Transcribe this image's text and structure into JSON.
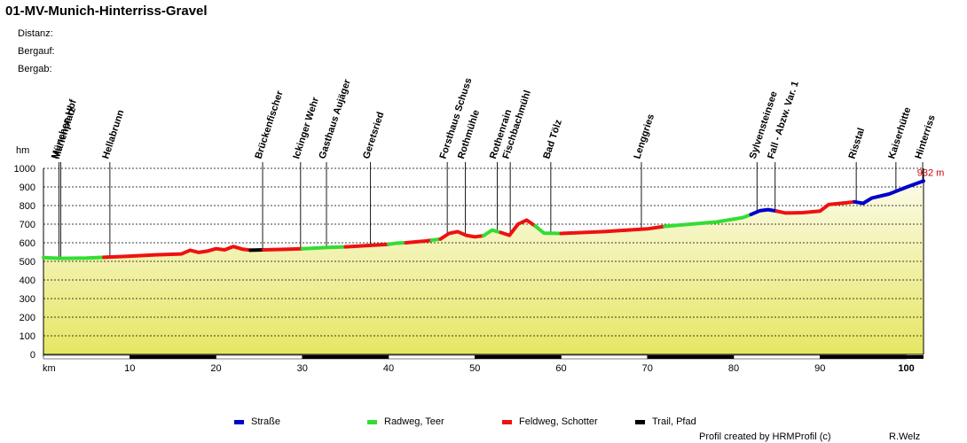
{
  "title": "01-MV-Munich-Hinterriss-Gravel",
  "stats": {
    "distance_label": "Distanz:",
    "ascent_label": "Bergauf:",
    "descent_label": "Bergab:"
  },
  "credit_left": "Profil created by HRMProfil (c)",
  "credit_right": "R.Welz",
  "colors": {
    "strasse": "#0000cc",
    "radweg": "#33dd33",
    "feldweg": "#ee1111",
    "trail": "#000000",
    "end_label": "#cc0000"
  },
  "chart_data": {
    "type": "area",
    "title": "01-MV-Munich-Hinterriss-Gravel",
    "xlabel": "km",
    "ylabel": "hm",
    "xlim": [
      0,
      102
    ],
    "ylim": [
      0,
      1000
    ],
    "xticks": [
      10,
      20,
      30,
      40,
      50,
      60,
      70,
      80,
      90,
      100
    ],
    "yticks": [
      0,
      100,
      200,
      300,
      400,
      500,
      600,
      700,
      800,
      900,
      1000
    ],
    "grid": true,
    "end_label": "932 m",
    "legend": [
      {
        "name": "Straße",
        "key": "strasse"
      },
      {
        "name": "Radweg, Teer",
        "key": "radweg"
      },
      {
        "name": "Feldweg, Schotter",
        "key": "feldweg"
      },
      {
        "name": "Trail, Pfad",
        "key": "trail"
      }
    ],
    "waypoints": [
      {
        "km": 1.8,
        "name": "München Hbf"
      },
      {
        "km": 2.0,
        "name": "Marienplatz"
      },
      {
        "km": 7.7,
        "name": "Hellabrunn"
      },
      {
        "km": 25.4,
        "name": "Brückenfischer"
      },
      {
        "km": 29.8,
        "name": "Ickinger Wehr"
      },
      {
        "km": 32.8,
        "name": "Gasthaus Aujäger"
      },
      {
        "km": 37.9,
        "name": "Geretsried"
      },
      {
        "km": 46.8,
        "name": "Forsthaus Schuss"
      },
      {
        "km": 48.9,
        "name": "Rothmühle"
      },
      {
        "km": 52.6,
        "name": "Rothenrain"
      },
      {
        "km": 54.1,
        "name": "Fischbachmühl"
      },
      {
        "km": 58.8,
        "name": "Bad Tölz"
      },
      {
        "km": 69.3,
        "name": "Lenggries"
      },
      {
        "km": 82.7,
        "name": "Sylvensteinsee"
      },
      {
        "km": 84.8,
        "name": "Fall - Abzw. Var. 1"
      },
      {
        "km": 94.2,
        "name": "Risstal"
      },
      {
        "km": 98.8,
        "name": "Kaiserhütte"
      },
      {
        "km": 101.9,
        "name": "Hinterriss"
      }
    ],
    "segments": [
      {
        "type": "radweg",
        "points": [
          [
            0,
            520
          ],
          [
            2,
            516
          ],
          [
            5,
            518
          ],
          [
            7,
            522
          ]
        ]
      },
      {
        "type": "feldweg",
        "points": [
          [
            7,
            522
          ],
          [
            10,
            528
          ],
          [
            13,
            535
          ],
          [
            16,
            540
          ],
          [
            17,
            560
          ],
          [
            18,
            548
          ],
          [
            19,
            555
          ],
          [
            20,
            568
          ],
          [
            21,
            562
          ],
          [
            22,
            580
          ],
          [
            23,
            566
          ],
          [
            24,
            560
          ]
        ]
      },
      {
        "type": "trail",
        "points": [
          [
            24,
            560
          ],
          [
            25.5,
            562
          ]
        ]
      },
      {
        "type": "feldweg",
        "points": [
          [
            25.5,
            562
          ],
          [
            28,
            565
          ],
          [
            30,
            568
          ]
        ]
      },
      {
        "type": "radweg",
        "points": [
          [
            30,
            568
          ],
          [
            33,
            575
          ],
          [
            35,
            578
          ]
        ]
      },
      {
        "type": "feldweg",
        "points": [
          [
            35,
            578
          ],
          [
            38,
            586
          ],
          [
            40,
            592
          ]
        ]
      },
      {
        "type": "radweg",
        "points": [
          [
            40,
            592
          ],
          [
            41,
            598
          ],
          [
            42,
            600
          ]
        ]
      },
      {
        "type": "feldweg",
        "points": [
          [
            42,
            600
          ],
          [
            44,
            608
          ],
          [
            45,
            614
          ]
        ]
      },
      {
        "type": "radweg",
        "points": [
          [
            45,
            614
          ],
          [
            46,
            620
          ]
        ]
      },
      {
        "type": "feldweg",
        "points": [
          [
            46,
            620
          ],
          [
            47,
            650
          ],
          [
            48,
            660
          ],
          [
            49,
            640
          ],
          [
            50,
            632
          ],
          [
            51,
            638
          ]
        ]
      },
      {
        "type": "radweg",
        "points": [
          [
            51,
            638
          ],
          [
            52,
            668
          ],
          [
            53,
            655
          ]
        ]
      },
      {
        "type": "feldweg",
        "points": [
          [
            53,
            655
          ],
          [
            54,
            640
          ],
          [
            55,
            700
          ],
          [
            56,
            722
          ],
          [
            57,
            690
          ]
        ]
      },
      {
        "type": "radweg",
        "points": [
          [
            57,
            690
          ],
          [
            58,
            652
          ],
          [
            60,
            650
          ]
        ]
      },
      {
        "type": "feldweg",
        "points": [
          [
            60,
            650
          ],
          [
            65,
            660
          ],
          [
            70,
            675
          ],
          [
            72,
            688
          ]
        ]
      },
      {
        "type": "radweg",
        "points": [
          [
            72,
            688
          ],
          [
            75,
            700
          ],
          [
            78,
            712
          ],
          [
            81,
            735
          ],
          [
            82,
            752
          ]
        ]
      },
      {
        "type": "strasse",
        "points": [
          [
            82,
            752
          ],
          [
            83,
            772
          ],
          [
            84,
            778
          ],
          [
            85,
            770
          ]
        ]
      },
      {
        "type": "feldweg",
        "points": [
          [
            85,
            770
          ],
          [
            86,
            760
          ],
          [
            88,
            762
          ],
          [
            90,
            770
          ],
          [
            91,
            805
          ],
          [
            93,
            815
          ],
          [
            94,
            820
          ]
        ]
      },
      {
        "type": "strasse",
        "points": [
          [
            94,
            820
          ],
          [
            95,
            812
          ],
          [
            96,
            840
          ],
          [
            98,
            862
          ],
          [
            100,
            898
          ],
          [
            101,
            915
          ],
          [
            102,
            932
          ]
        ]
      }
    ]
  }
}
